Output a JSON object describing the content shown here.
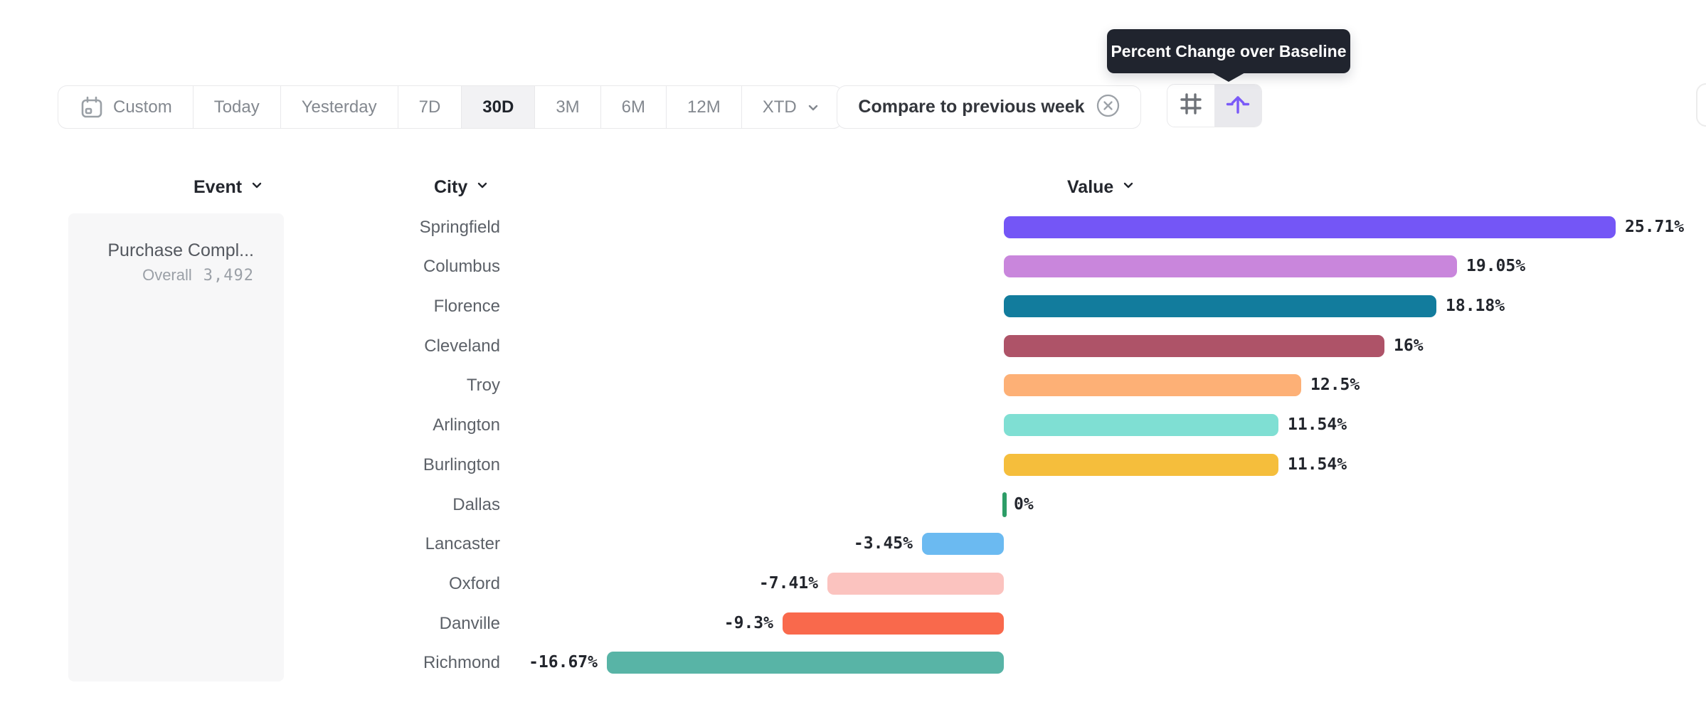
{
  "tooltip": {
    "text": "Percent Change over Baseline"
  },
  "toolbar": {
    "date_ranges": [
      {
        "label": "Custom",
        "active": false
      },
      {
        "label": "Today",
        "active": false
      },
      {
        "label": "Yesterday",
        "active": false
      },
      {
        "label": "7D",
        "active": false
      },
      {
        "label": "30D",
        "active": true
      },
      {
        "label": "3M",
        "active": false
      },
      {
        "label": "6M",
        "active": false
      },
      {
        "label": "12M",
        "active": false
      },
      {
        "label": "XTD",
        "active": false
      }
    ],
    "compare_filter": {
      "label": "Compare to previous week"
    },
    "view_toggle": {
      "options": [
        "grid-view",
        "percent-change-over-baseline-view"
      ],
      "active": "percent-change-over-baseline-view"
    }
  },
  "columns": {
    "event": "Event",
    "city": "City",
    "value": "Value"
  },
  "event_panel": {
    "event_name": "Purchase Compl...",
    "metric_label": "Overall",
    "metric_value": "3,492"
  },
  "chart_data": {
    "type": "bar",
    "orientation": "horizontal",
    "title": "Percent Change over Baseline",
    "unit": "percent",
    "categories": [
      "Springfield",
      "Columbus",
      "Florence",
      "Cleveland",
      "Troy",
      "Arlington",
      "Burlington",
      "Dallas",
      "Lancaster",
      "Oxford",
      "Danville",
      "Richmond"
    ],
    "values": [
      25.71,
      19.05,
      18.18,
      16,
      12.5,
      11.54,
      11.54,
      0,
      -3.45,
      -7.41,
      -9.3,
      -16.67
    ],
    "labels": [
      "25.71%",
      "19.05%",
      "18.18%",
      "16%",
      "12.5%",
      "11.54%",
      "11.54%",
      "0%",
      "-3.45%",
      "-7.41%",
      "-9.3%",
      "-16.67%"
    ],
    "colors": [
      "#7456F6",
      "#C986DC",
      "#127C9D",
      "#AE5368",
      "#FDB076",
      "#7FDFD3",
      "#F5BE3C",
      "#2D9D67",
      "#6BBAF1",
      "#FBC3BF",
      "#F9694C",
      "#58B4A6"
    ],
    "baseline": 0,
    "xlim": [
      -16.67,
      25.71
    ],
    "grid": false,
    "legend": false
  },
  "colors": {
    "accent": "#7A5AF8",
    "tooltip_bg": "#20242E",
    "active_segment_bg": "#F2F2F4",
    "positive_tick_green": "#2D9D67"
  }
}
